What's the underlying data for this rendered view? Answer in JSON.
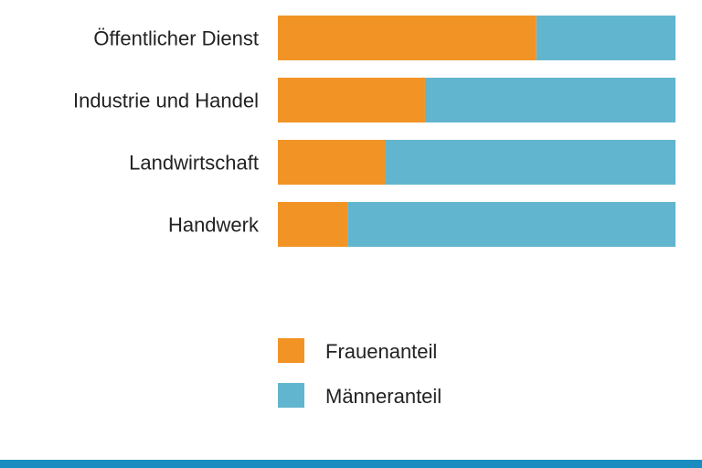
{
  "chart_data": {
    "type": "bar",
    "orientation": "horizontal",
    "stacked": true,
    "normalized_percent": true,
    "categories": [
      "Öffentlicher Dienst",
      "Industrie und Handel",
      "Landwirtschaft",
      "Handwerk"
    ],
    "series": [
      {
        "name": "Frauenanteil",
        "color": "#f29325",
        "values": [
          65,
          37,
          27,
          17.5
        ]
      },
      {
        "name": "Männeranteil",
        "color": "#62b5ce",
        "values": [
          35,
          63,
          73,
          82.5
        ]
      }
    ],
    "xlim": [
      0,
      100
    ],
    "grid": false,
    "axes_visible": false,
    "legend": "bottom"
  },
  "footer_color": "#1a8cbf"
}
